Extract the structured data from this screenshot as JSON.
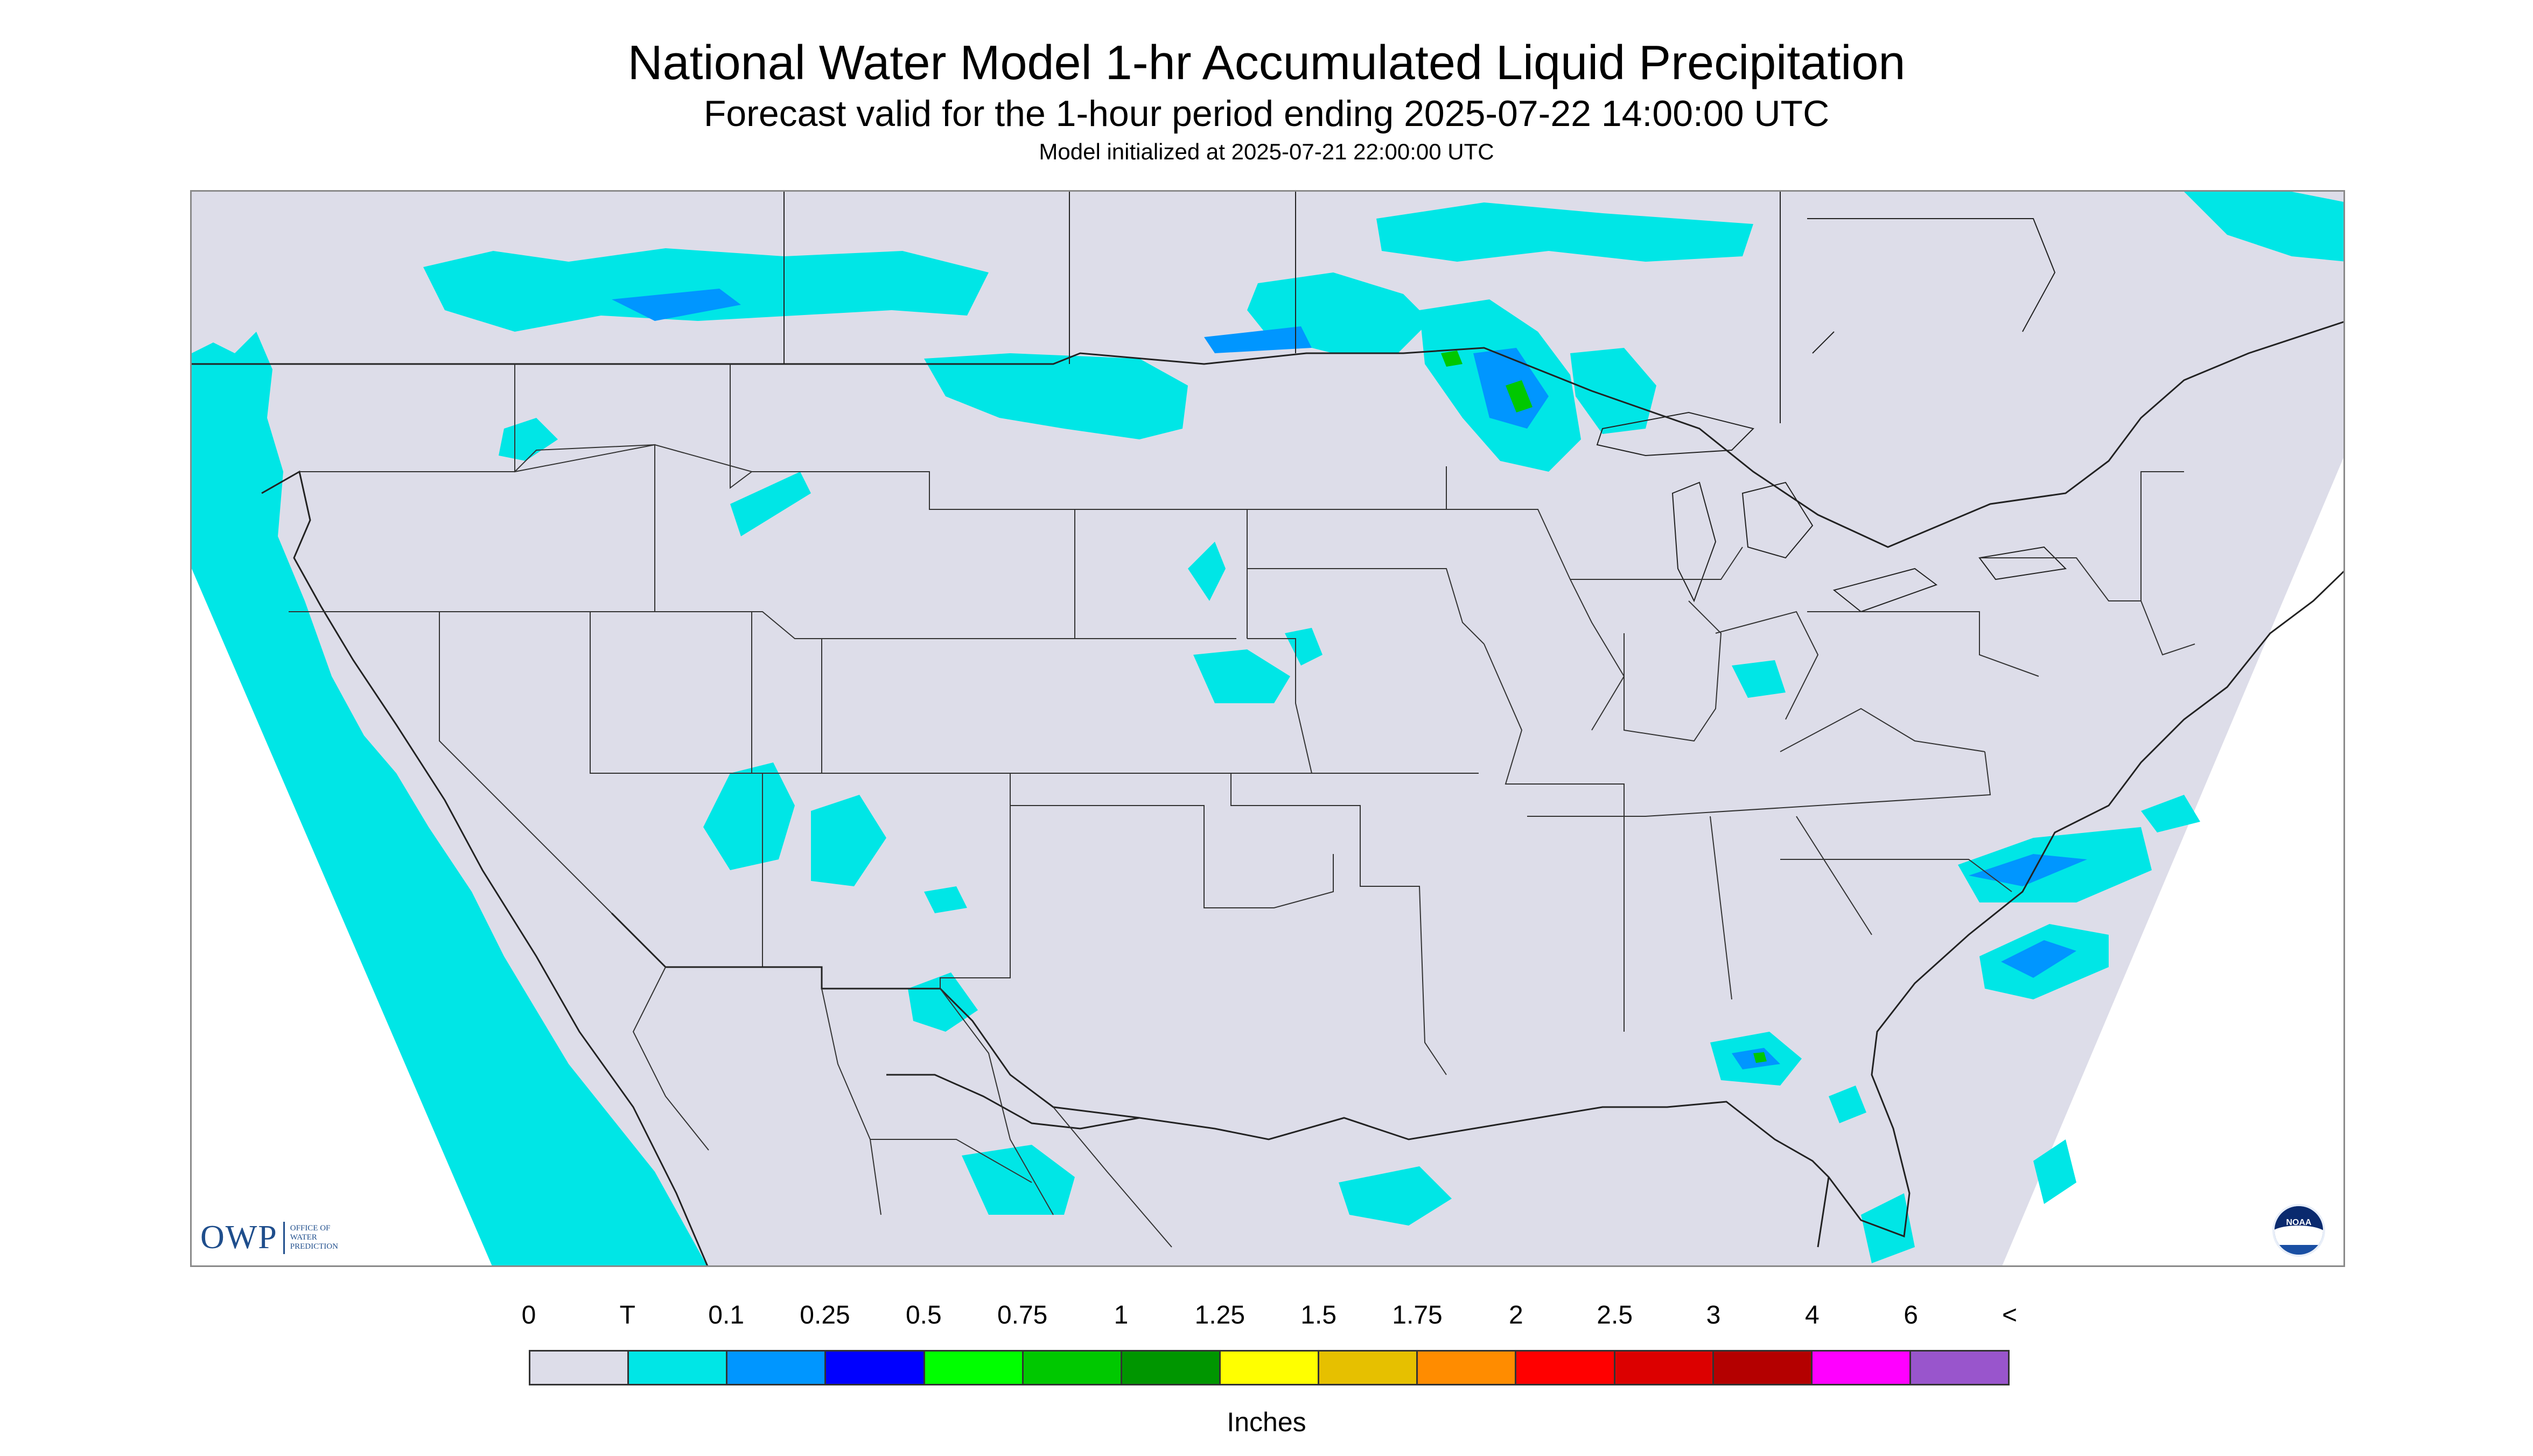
{
  "header": {
    "title": "National Water Model 1-hr Accumulated Liquid Precipitation",
    "subtitle": "Forecast valid for the 1-hour period ending 2025-07-22 14:00:00 UTC",
    "init": "Model initialized at 2025-07-21 22:00:00 UTC"
  },
  "logos": {
    "owp": {
      "letters": "OWP",
      "line1": "OFFICE OF",
      "line2": "WATER",
      "line3": "PREDICTION"
    },
    "noaa": {
      "label": "NOAA"
    }
  },
  "legend": {
    "labels": [
      "0",
      "T",
      "0.1",
      "0.25",
      "0.5",
      "0.75",
      "1",
      "1.25",
      "1.5",
      "1.75",
      "2",
      "2.5",
      "3",
      "4",
      "6",
      "<"
    ],
    "colors": [
      "#dddde9",
      "#00e6e6",
      "#0096ff",
      "#0000ff",
      "#00ff00",
      "#00c800",
      "#009600",
      "#ffff00",
      "#e6c000",
      "#ff8c00",
      "#ff0000",
      "#dc0000",
      "#b40000",
      "#ff00ff",
      "#9955cc"
    ],
    "units": "Inches"
  },
  "map": {
    "land_color": "#dddde9",
    "outside_color": "#ffffff",
    "precip_colors": {
      "trace": "#00e6e6",
      "light": "#0096ff",
      "moderate": "#0000ff",
      "heavy": "#00c800"
    }
  }
}
